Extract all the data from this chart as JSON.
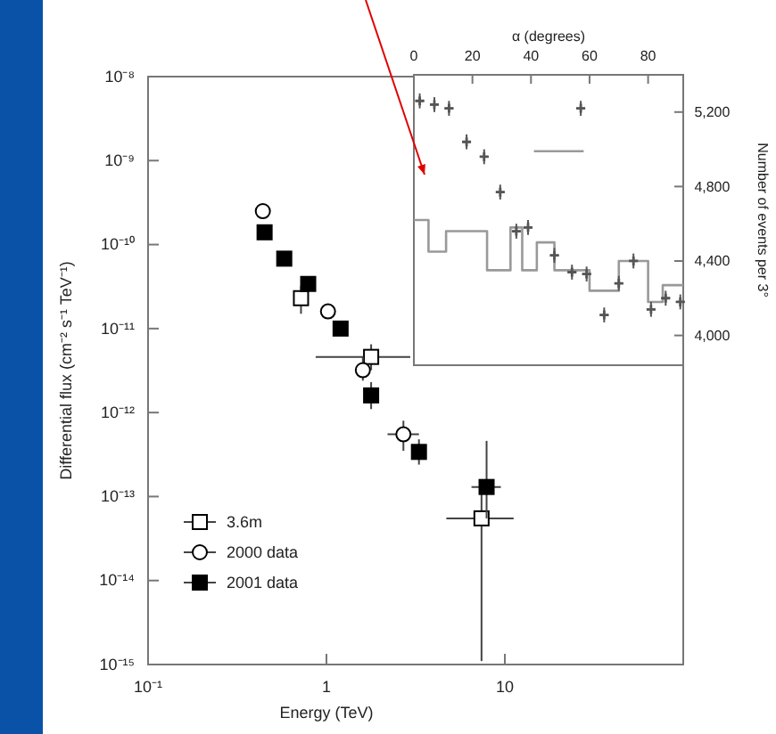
{
  "chart_data": [
    {
      "type": "scatter",
      "xlabel": "Energy (TeV)",
      "ylabel": "Differential flux (cm⁻² s⁻¹ TeV⁻¹)",
      "log": "xy",
      "xlim": [
        0.1,
        100
      ],
      "xticks": [
        {
          "value": 0.1,
          "label": "10⁻¹"
        },
        1,
        10
      ],
      "ylim": [
        1e-15,
        1e-08
      ],
      "yticks": [
        {
          "value": 1e-15,
          "label": "10⁻¹⁵"
        },
        {
          "value": 1e-14,
          "label": "10⁻¹⁴"
        },
        {
          "value": 1e-13,
          "label": "10⁻¹³"
        },
        {
          "value": 1e-12,
          "label": "10⁻¹²"
        },
        {
          "value": 1e-11,
          "label": "10⁻¹¹"
        },
        {
          "value": 1e-10,
          "label": "10⁻¹⁰"
        },
        {
          "value": 1e-09,
          "label": "10⁻⁹"
        },
        {
          "value": 1e-08,
          "label": "10⁻⁸"
        }
      ],
      "legend": "bottom left",
      "series": [
        {
          "name": "3.6m",
          "marker": "square",
          "color": "#ffffff",
          "x": [
            0.72,
            1.78,
            7.4
          ],
          "values": [
            2.3e-11,
            4.6e-12,
            5.5e-14
          ],
          "errors": [
            [
              1.5e-11,
              3.2e-11
            ],
            [
              3.2e-12,
              6.5e-12
            ],
            [
              1.1e-15,
              1.3e-13
            ]
          ],
          "xerrors": [
            null,
            [
              0.87,
              2.95
            ],
            [
              4.7,
              11.2
            ]
          ]
        },
        {
          "name": "2000 data",
          "marker": "circle",
          "color": "#ffffff",
          "x": [
            0.44,
            1.02,
            1.6,
            2.7
          ],
          "values": [
            2.5e-10,
            1.6e-11,
            3.2e-12,
            5.5e-13
          ],
          "errors": [
            null,
            null,
            [
              2.4e-12,
              4.6e-12
            ],
            [
              3.5e-13,
              8e-13
            ]
          ],
          "xerrors": [
            null,
            null,
            null,
            [
              2.2,
              3.3
            ]
          ]
        },
        {
          "name": "2001 data",
          "marker": "square",
          "color": "#000000",
          "x": [
            0.45,
            0.58,
            0.79,
            1.2,
            1.78,
            3.3,
            7.9
          ],
          "values": [
            1.4e-10,
            6.8e-11,
            3.4e-11,
            1e-11,
            1.6e-12,
            3.4e-13,
            1.3e-13
          ],
          "errors": [
            null,
            null,
            null,
            null,
            [
              1.1e-12,
              2.3e-12
            ],
            [
              2.4e-13,
              4.8e-13
            ],
            [
              5.5e-14,
              4.6e-13
            ]
          ],
          "xerrors": [
            null,
            null,
            null,
            null,
            null,
            null,
            [
              6.5,
              9.5
            ]
          ]
        }
      ]
    },
    {
      "type": "scatter",
      "xlabel": "α (degrees)",
      "ylabel": "Number of events per 3°",
      "xlim": [
        0,
        92
      ],
      "xticks": [
        0,
        20,
        40,
        60,
        80
      ],
      "ylim": [
        3840,
        5400
      ],
      "yticks": [
        {
          "value": 4000,
          "label": "4,000"
        },
        {
          "value": 4400,
          "label": "4,400"
        },
        {
          "value": 4800,
          "label": "4,800"
        },
        {
          "value": 5200,
          "label": "5,200"
        }
      ],
      "series": [
        {
          "type": "step",
          "color": "#999999",
          "x": [
            0,
            5,
            11,
            25,
            33,
            37,
            42,
            48,
            60,
            70,
            80,
            85,
            92
          ],
          "values": [
            4620,
            4450,
            4560,
            4350,
            4580,
            4350,
            4500,
            4350,
            4240,
            4400,
            4180,
            4270,
            4270
          ]
        },
        {
          "marker": "cross",
          "color": "#555555",
          "x": [
            2,
            7,
            12,
            18,
            24,
            29.5,
            35,
            39,
            48,
            54,
            57,
            59,
            65,
            70,
            75,
            81,
            86,
            91
          ],
          "values": [
            5260,
            5240,
            5220,
            5040,
            4960,
            4770,
            4560,
            4580,
            4430,
            4340,
            5220,
            4330,
            4110,
            4280,
            4400,
            4140,
            4200,
            4180
          ],
          "errors": [
            40,
            40,
            40,
            40,
            40,
            40,
            40,
            40,
            40,
            40,
            40,
            40,
            40,
            40,
            40,
            40,
            40,
            40
          ],
          "xerrors": [
            1.5,
            1.5,
            1.5,
            1.5,
            1.5,
            1.5,
            1.5,
            1.5,
            1.5,
            1.5,
            1.5,
            1.5,
            1.5,
            1.5,
            1.5,
            1.5,
            1.5,
            1.5
          ]
        },
        {
          "type": "line",
          "color": "#999999",
          "x": [
            41,
            58
          ],
          "values": [
            4990,
            4990
          ]
        }
      ]
    }
  ]
}
